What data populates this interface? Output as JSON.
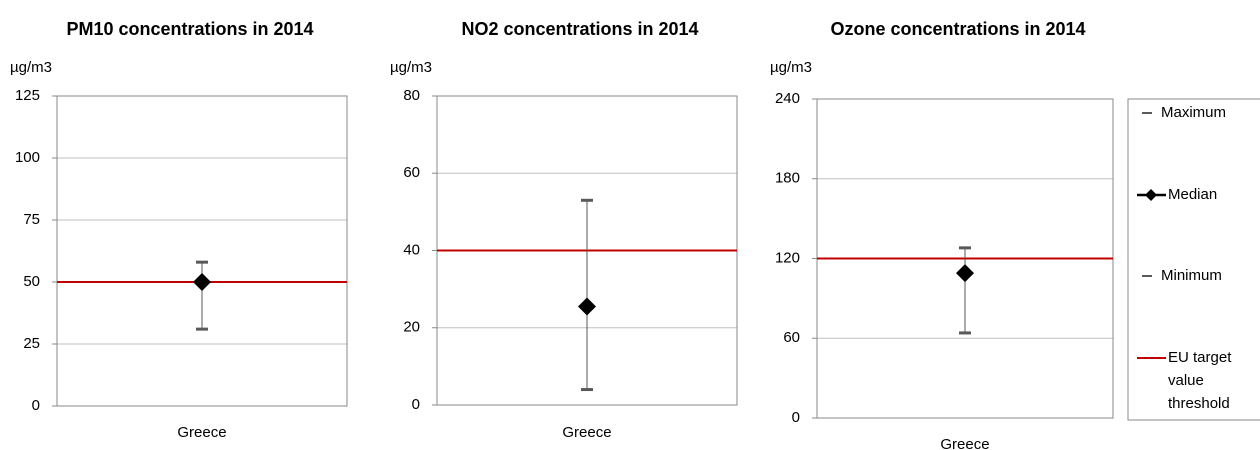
{
  "chart_data": [
    {
      "type": "range",
      "title": "PM10 concentrations in 2014",
      "y_label": "µg/m3",
      "categories": [
        "Greece"
      ],
      "series": [
        {
          "color": "#595959",
          "values": [
            58
          ]
        },
        {
          "color": "#000000",
          "values": [
            50
          ]
        },
        {
          "color": "#595959",
          "values": [
            31
          ]
        },
        {
          "color": "#c00000",
          "values": [
            50
          ]
        }
      ],
      "ylim": [
        0,
        125
      ],
      "yticks": [
        0,
        25,
        50,
        75,
        100,
        125
      ],
      "grid": true
    },
    {
      "type": "range",
      "title": "NO2 concentrations in 2014",
      "y_label": "µg/m3",
      "categories": [
        "Greece"
      ],
      "series": [
        {
          "color": "#595959",
          "values": [
            53
          ]
        },
        {
          "color": "#000000",
          "values": [
            25.5
          ]
        },
        {
          "color": "#595959",
          "values": [
            4
          ]
        },
        {
          "color": "#c00000",
          "values": [
            40
          ]
        }
      ],
      "ylim": [
        0,
        80
      ],
      "yticks": [
        0,
        20,
        40,
        60,
        80
      ],
      "grid": true
    },
    {
      "type": "range",
      "title": "Ozone concentrations in 2014",
      "y_label": "µg/m3",
      "categories": [
        "Greece"
      ],
      "series": [
        {
          "name": "Maximum",
          "color": "#595959",
          "values": [
            128
          ]
        },
        {
          "name": "Median",
          "color": "#000000",
          "values": [
            109
          ]
        },
        {
          "name": "Minimum",
          "color": "#595959",
          "values": [
            64
          ]
        },
        {
          "name": "EU target value threshold",
          "color": "#c00000",
          "values": [
            120
          ]
        }
      ],
      "ylim": [
        0,
        240
      ],
      "yticks": [
        0,
        60,
        120,
        180,
        240
      ],
      "grid": true,
      "legend": "right"
    }
  ]
}
